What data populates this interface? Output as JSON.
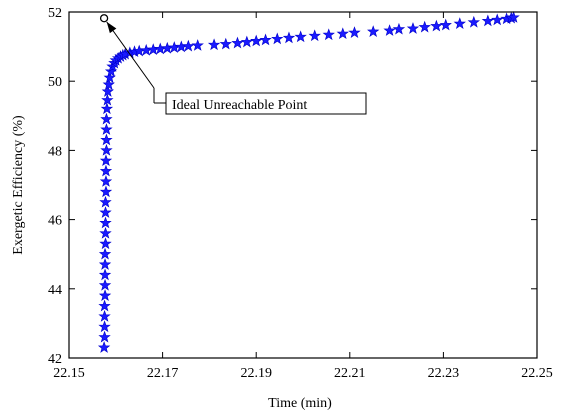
{
  "chart_data": {
    "type": "scatter",
    "title": "",
    "xlabel": "Time (min)",
    "ylabel": "Exergetic Efficiency (%)",
    "xlim": [
      22.15,
      22.25
    ],
    "ylim": [
      42,
      52
    ],
    "xticks": [
      22.15,
      22.17,
      22.19,
      22.21,
      22.23,
      22.25
    ],
    "xtick_labels": [
      "22.15",
      "22.17",
      "22.19",
      "22.21",
      "22.23",
      "22.25"
    ],
    "yticks": [
      42,
      44,
      46,
      48,
      50,
      52
    ],
    "ytick_labels": [
      "42",
      "44",
      "46",
      "48",
      "50",
      "52"
    ],
    "grid": false,
    "legend": "none",
    "marker": "star",
    "marker_color": "#1a1aff",
    "series": [
      {
        "points": [
          [
            22.1575,
            42.3
          ],
          [
            22.1576,
            42.6
          ],
          [
            22.1576,
            42.9
          ],
          [
            22.1576,
            43.2
          ],
          [
            22.1576,
            43.5
          ],
          [
            22.1577,
            43.8
          ],
          [
            22.1577,
            44.1
          ],
          [
            22.1577,
            44.4
          ],
          [
            22.1577,
            44.7
          ],
          [
            22.1577,
            45.0
          ],
          [
            22.1578,
            45.3
          ],
          [
            22.1578,
            45.6
          ],
          [
            22.1578,
            45.9
          ],
          [
            22.1578,
            46.2
          ],
          [
            22.1578,
            46.5
          ],
          [
            22.1579,
            46.8
          ],
          [
            22.1579,
            47.1
          ],
          [
            22.1579,
            47.4
          ],
          [
            22.1579,
            47.7
          ],
          [
            22.158,
            48.0
          ],
          [
            22.158,
            48.3
          ],
          [
            22.158,
            48.6
          ],
          [
            22.158,
            48.9
          ],
          [
            22.1581,
            49.2
          ],
          [
            22.1582,
            49.45
          ],
          [
            22.1583,
            49.7
          ],
          [
            22.1585,
            49.9
          ],
          [
            22.1587,
            50.1
          ],
          [
            22.159,
            50.28
          ],
          [
            22.1593,
            50.42
          ],
          [
            22.1597,
            50.52
          ],
          [
            22.16,
            50.6
          ],
          [
            22.1605,
            50.66
          ],
          [
            22.161,
            50.71
          ],
          [
            22.1615,
            50.75
          ],
          [
            22.162,
            50.78
          ],
          [
            22.163,
            50.82
          ],
          [
            22.164,
            50.85
          ],
          [
            22.165,
            50.87
          ],
          [
            22.1665,
            50.89
          ],
          [
            22.168,
            50.91
          ],
          [
            22.1695,
            50.93
          ],
          [
            22.171,
            50.95
          ],
          [
            22.1725,
            50.97
          ],
          [
            22.174,
            50.99
          ],
          [
            22.1755,
            51.01
          ],
          [
            22.1775,
            51.03
          ],
          [
            22.181,
            51.05
          ],
          [
            22.1835,
            51.07
          ],
          [
            22.186,
            51.1
          ],
          [
            22.188,
            51.13
          ],
          [
            22.19,
            51.16
          ],
          [
            22.192,
            51.19
          ],
          [
            22.1945,
            51.22
          ],
          [
            22.197,
            51.25
          ],
          [
            22.1995,
            51.28
          ],
          [
            22.2025,
            51.31
          ],
          [
            22.2055,
            51.34
          ],
          [
            22.2085,
            51.37
          ],
          [
            22.211,
            51.4
          ],
          [
            22.215,
            51.43
          ],
          [
            22.2185,
            51.46
          ],
          [
            22.2205,
            51.5
          ],
          [
            22.2235,
            51.52
          ],
          [
            22.226,
            51.56
          ],
          [
            22.2285,
            51.59
          ],
          [
            22.2305,
            51.62
          ],
          [
            22.2335,
            51.66
          ],
          [
            22.2365,
            51.7
          ],
          [
            22.2395,
            51.74
          ],
          [
            22.2415,
            51.77
          ],
          [
            22.2435,
            51.8
          ],
          [
            22.2445,
            51.82
          ],
          [
            22.245,
            51.84
          ]
        ]
      }
    ],
    "annotations": [
      {
        "text": "Ideal Unreachable Point",
        "point": [
          22.1575,
          51.82
        ],
        "marker": "open-circle",
        "arrow": true
      }
    ]
  }
}
